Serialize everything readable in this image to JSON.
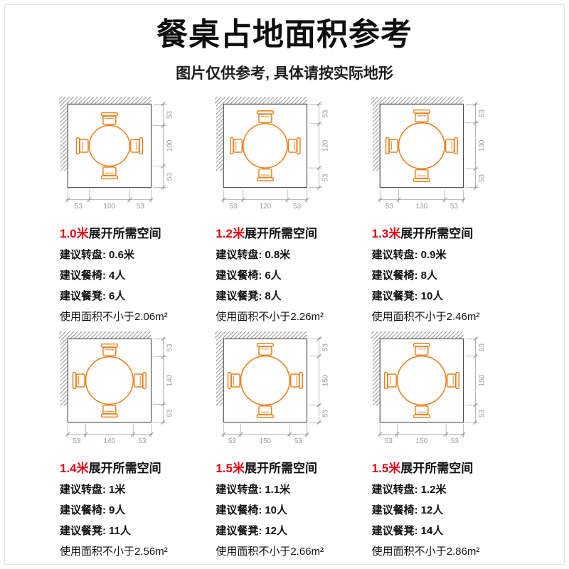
{
  "header": {
    "title": "餐桌占地面积参考",
    "subtitle": "图片仅供参考, 具体请按实际地形"
  },
  "colors": {
    "orange": "#ED7D17",
    "red": "#E60012",
    "dim_label": "#999999",
    "dim_line": "#aaaaaa",
    "tick": "#888888",
    "room_line": "#4a4a4a",
    "hatch": "#888888"
  },
  "panels": [
    {
      "size": "1.0米",
      "title_black": "展开所需空间",
      "dim_side": "53",
      "dim_w": "100",
      "dim_h": "100",
      "specs": [
        {
          "label": "建议转盘:",
          "value": "0.6米"
        },
        {
          "label": "建议餐椅:",
          "value": "4人"
        },
        {
          "label": "建议餐凳:",
          "value": "6人"
        }
      ],
      "area": "使用面积不小于2.06m²"
    },
    {
      "size": "1.2米",
      "title_black": "展开所需空间",
      "dim_side": "53",
      "dim_w": "120",
      "dim_h": "120",
      "specs": [
        {
          "label": "建议转盘:",
          "value": "0.8米"
        },
        {
          "label": "建议餐椅:",
          "value": "6人"
        },
        {
          "label": "建议餐凳:",
          "value": "8人"
        }
      ],
      "area": "使用面积不小于2.26m²"
    },
    {
      "size": "1.3米",
      "title_black": "展开所需空间",
      "dim_side": "53",
      "dim_w": "130",
      "dim_h": "130",
      "specs": [
        {
          "label": "建议转盘:",
          "value": "0.9米"
        },
        {
          "label": "建议餐椅:",
          "value": "8人"
        },
        {
          "label": "建议餐凳:",
          "value": "10人"
        }
      ],
      "area": "使用面积不小于2.46m²"
    },
    {
      "size": "1.4米",
      "title_black": "展开所需空间",
      "dim_side": "53",
      "dim_w": "140",
      "dim_h": "140",
      "specs": [
        {
          "label": "建议转盘:",
          "value": "1米"
        },
        {
          "label": "建议餐椅:",
          "value": "9人"
        },
        {
          "label": "建议餐凳:",
          "value": "11人"
        }
      ],
      "area": "使用面积不小于2.56m²"
    },
    {
      "size": "1.5米",
      "title_black": "展开所需空间",
      "dim_side": "53",
      "dim_w": "150",
      "dim_h": "150",
      "specs": [
        {
          "label": "建议转盘:",
          "value": "1.1米"
        },
        {
          "label": "建议餐椅:",
          "value": "10人"
        },
        {
          "label": "建议餐凳:",
          "value": "12人"
        }
      ],
      "area": "使用面积不小于2.66m²"
    },
    {
      "size": "1.5米",
      "title_black": "展开所需空间",
      "dim_side": "53",
      "dim_w": "150",
      "dim_h": "150",
      "specs": [
        {
          "label": "建议转盘:",
          "value": "1.2米"
        },
        {
          "label": "建议餐椅:",
          "value": "12人"
        },
        {
          "label": "建议餐凳:",
          "value": "14人"
        }
      ],
      "area": "使用面积不小于2.86m²"
    }
  ]
}
